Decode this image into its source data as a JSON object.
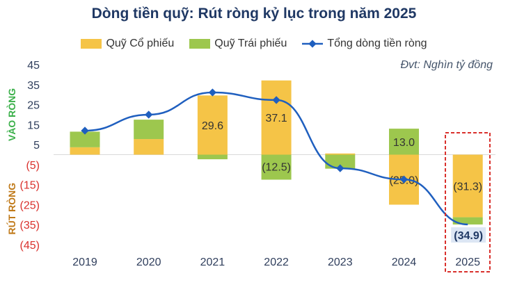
{
  "chart_data": {
    "type": "bar",
    "title": "Dòng tiền quỹ: Rút ròng kỷ lục trong năm 2025",
    "unit_note": "Đvt: Nghìn tỷ đồng",
    "positive_label": "VÀO RÒNG",
    "negative_label": "RÚT RÒNG",
    "categories": [
      "2019",
      "2020",
      "2021",
      "2022",
      "2023",
      "2024",
      "2025"
    ],
    "yticks": [
      "45",
      "35",
      "25",
      "15",
      "5",
      "(5)",
      "(15)",
      "(25)",
      "(35)",
      "(45)"
    ],
    "ylim": [
      -45,
      45
    ],
    "legend_placement": "top",
    "series": [
      {
        "name": "Quỹ Cổ phiếu",
        "type": "stacked-bar",
        "color": "#f5c447",
        "values": [
          3.7,
          7.8,
          29.6,
          37.1,
          0.6,
          -25.0,
          -31.3
        ],
        "labels": [
          "",
          "",
          "29.6",
          "37.1",
          "",
          "(25.0)",
          "(31.3)"
        ]
      },
      {
        "name": "Quỹ Trái phiếu",
        "type": "stacked-bar",
        "color": "#9dc74e",
        "values": [
          7.8,
          9.7,
          -2.3,
          -12.5,
          -7.0,
          13.0,
          -3.6
        ],
        "labels": [
          "",
          "",
          "",
          "(12.5)",
          "",
          "13.0",
          ""
        ]
      },
      {
        "name": "Tổng dòng tiền ròng",
        "type": "line",
        "color": "#1f5fbf",
        "values": [
          12.0,
          20.0,
          31.1,
          27.3,
          -6.8,
          -12.4,
          -34.9
        ],
        "labels": [
          "",
          "",
          "",
          "",
          "",
          "",
          "(34.9)"
        ]
      }
    ],
    "highlight": "2025"
  }
}
